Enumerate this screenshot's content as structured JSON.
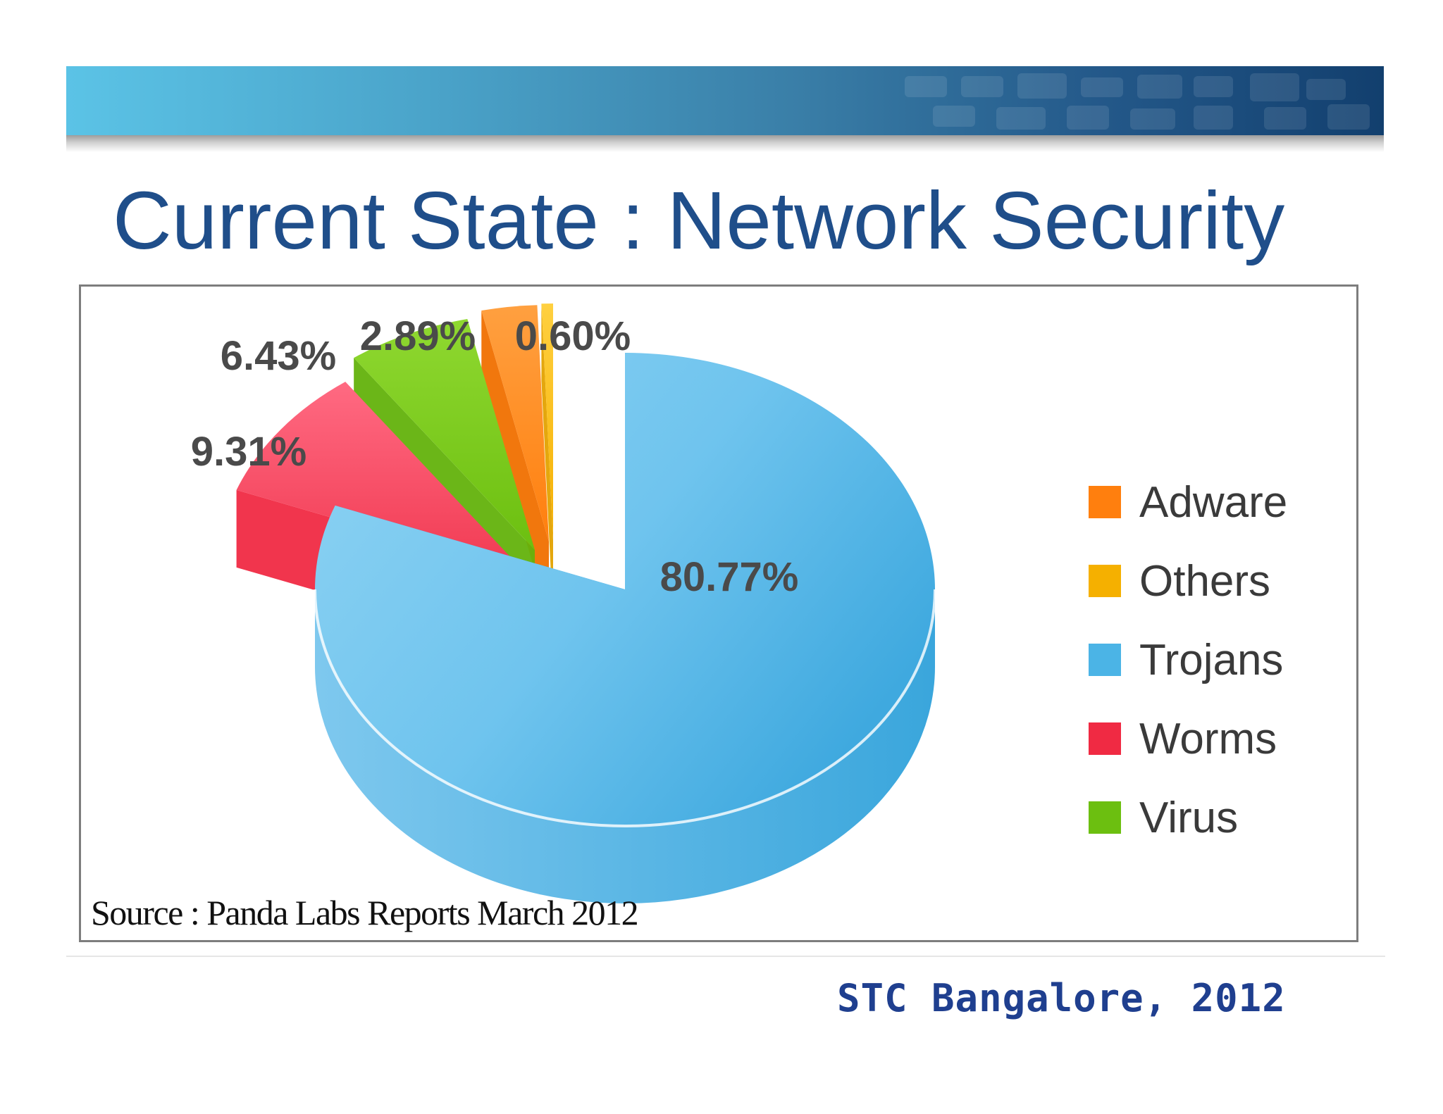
{
  "slide": {
    "title": "Current State : Network Security",
    "footer": "STC Bangalore, 2012"
  },
  "chart_data": {
    "type": "pie",
    "style": "3d-exploded",
    "title": "",
    "slices": [
      {
        "name": "Trojans",
        "value": 80.77,
        "label": "80.77%",
        "color": "#4bb4e6"
      },
      {
        "name": "Worms",
        "value": 9.31,
        "label": "9.31%",
        "color": "#f02a43"
      },
      {
        "name": "Virus",
        "value": 6.43,
        "label": "6.43%",
        "color": "#6cbf10"
      },
      {
        "name": "Adware",
        "value": 2.89,
        "label": "2.89%",
        "color": "#ff7f0e"
      },
      {
        "name": "Others",
        "value": 0.6,
        "label": "0.60%",
        "color": "#f5b000"
      }
    ],
    "legend": {
      "position": "right",
      "entries": [
        "Adware",
        "Others",
        "Trojans",
        "Worms",
        "Virus"
      ]
    },
    "source": "Source : Panda Labs Reports March 2012"
  }
}
